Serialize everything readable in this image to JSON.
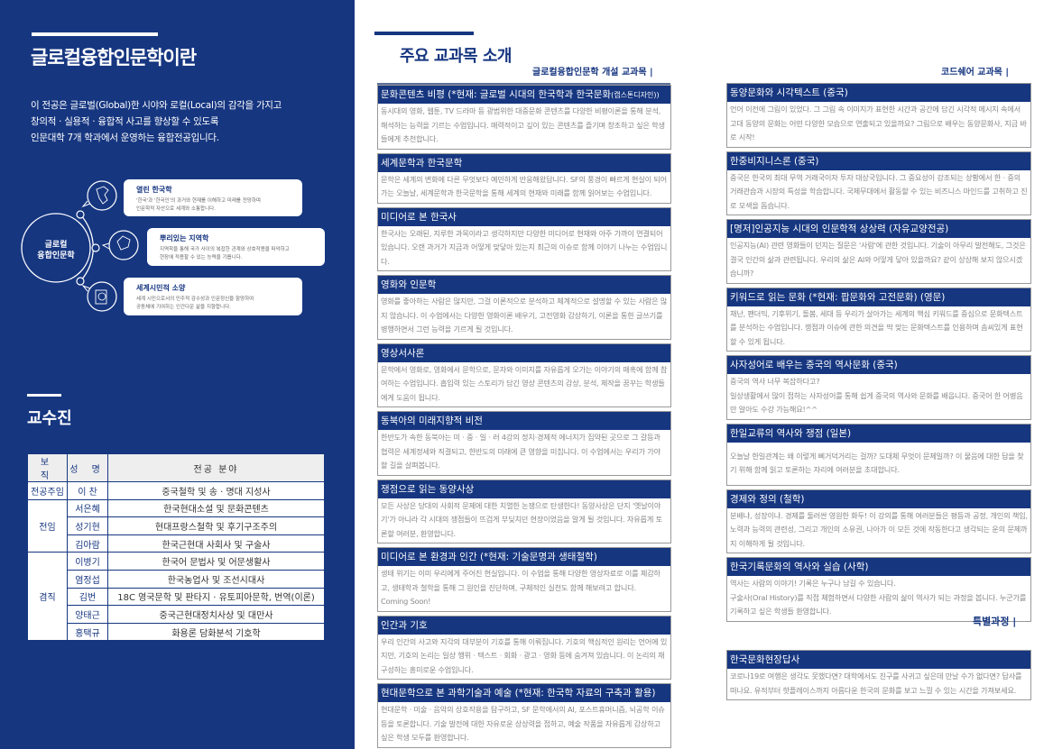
{
  "left": {
    "title": "글로컬융합인문학이란",
    "intro": [
      "이 전공은 글로벌(Global)한 시야와 로컬(Local)의 감각을 가지고",
      "창의적 · 실용적 · 융합적 사고를 향상할 수 있도록",
      "인문대학 7개 학과에서 운영하는 융합전공입니다."
    ],
    "diagram": {
      "center_line1": "글로컬",
      "center_line2": "융합인문학",
      "cards": [
        {
          "title": "열린 한국학",
          "line1": "'한국'과 '한국인'의 과거와 현재를 이해하고 미래를 전망하며",
          "line2": "인문학적 자산으로 세계와 소통합니다.",
          "icon": "korea-map-icon"
        },
        {
          "title": "뿌리있는 지역학",
          "line1": "지역학을 통해 국가 사이의 복잡한 관계와 상호작용을 파악하고",
          "line2": "현장에 적용할 수 있는 능력을 기릅니다.",
          "icon": "region-map-icon"
        },
        {
          "title": "세계시민적 소양",
          "line1": "세계 시민으로서의 민주적 감수성과 인문정신을 함양하여",
          "line2": "공동체에 기여하는 인간다운 삶을 지향합니다.",
          "icon": "passport-globe-icon"
        }
      ]
    },
    "faculty_title": "교수진",
    "table": {
      "headers": [
        "보 직",
        "성 명",
        "전공 분야"
      ],
      "rows": [
        {
          "rank": "전공주임",
          "name": "이 찬",
          "field": "중국철학 및 송 · 명대 지성사"
        },
        {
          "rank": "전임",
          "name": "서은혜",
          "field": "한국현대소설 및 문화콘텐츠"
        },
        {
          "rank": "",
          "name": "성기현",
          "field": "현대프랑스철학 및 후기구조주의"
        },
        {
          "rank": "",
          "name": "김아람",
          "field": "한국근현대 사회사 및 구술사"
        },
        {
          "rank": "겸직",
          "name": "이병기",
          "field": "한국어 문법사 및 어문생활사"
        },
        {
          "rank": "",
          "name": "염정섭",
          "field": "한국농업사 및 조선시대사"
        },
        {
          "rank": "",
          "name": "김번",
          "field": "18C 영국문학 및 판타지 · 유토피아문학, 번역(이론)"
        },
        {
          "rank": "",
          "name": "양태근",
          "field": "중국근현대정치사상 및 대만사"
        },
        {
          "rank": "",
          "name": "홍택규",
          "field": "화용론 담화분석 기호학"
        }
      ]
    }
  },
  "right": {
    "title": "주요 교과목 소개",
    "sub_left": "글로컬융합인문학 개설 교과목  |",
    "sub_right": "코드쉐어 교과목  |",
    "sub_special": "특별과정  |",
    "left_courses": [
      {
        "title": "문화콘텐츠 비평 (*현재: 글로벌 시대의 한국학과 한국문화",
        "title_small": "(캡스톤디자인))",
        "desc": "동시대의 영화, 웹툰, TV 드라마 등 광범위한 대중문화 콘텐츠를 다양한 비평이론을 통해 분석, 해석하는 능력을 기르는 수업입니다. 매력적이고 깊이 있는 콘텐츠를 즐기며 창조하고 싶은 학생들에게 추천합니다."
      },
      {
        "title": "세계문학과 한국문학",
        "desc": "문학은 세계의 변화에 다른 무엇보다 예민하게 반응해왔답니다. SF의 풍경이 빠르게 현실이 되어가는 오늘날, 세계문학과 한국문학을 통해 세계의 현재와 미래를 함께 읽어보는 수업입니다."
      },
      {
        "title": "미디어로 본 한국사",
        "desc": "한국사는 오래된, 지루한 과목이라고 생각하지만 다양한 미디어로 현재와 아주 가까이 연결되어 있습니다. 오랜 과거가 지금과 어떻게 맞닿아 있는지 최근의 이슈로 함께 이야기 나누는 수업입니다."
      },
      {
        "title": "영화와 인문학",
        "desc": "영화를 좋아하는 사람은 많지만, 그걸 이론적으로 분석하고 체계적으로 설명할 수 있는 사람은 많지 않습니다. 이 수업에서는 다양한 영화이론 배우기, 고전영화 감상하기, 이론을 통한 글쓰기를 병행하면서 그런 능력을 기르게 될 것입니다."
      },
      {
        "title": "영상서사론",
        "desc": "문학에서 영화로, 영화에서 문학으로, 문자와 이미지를 자유롭게 오가는 이야기의 매혹에 함께 참여하는 수업입니다. 흡입력 있는 스토리가 담긴 영상 콘텐츠의 감상, 분석, 제작을 꿈꾸는 학생들에게 도움이 됩니다."
      },
      {
        "title": "동북아의 미래지향적 비전",
        "desc": "한반도가 속한 동북아는 미 · 중 · 일 · 러 4강의 정치·경제적 에너지가 집약된 곳으로 그 갈등과 협력은 세계정세와 직결되고, 한반도의 미래에 큰 영향을 미칩니다. 이 수업에서는 우리가 가야 할 길을 살펴봅니다."
      },
      {
        "title": "쟁점으로 읽는 동양사상",
        "desc": "모든 사상은 당대의 사회적 문제에 대한 치열한 논쟁으로 탄생한다! 동양사상은 단지 '옛날이야기'가 아니라 각 시대의 쟁점들이 뜨겁게 부딪치던 현장이었음을 알게 될 것입니다. 자유롭게 토론할 여러분, 환영합니다."
      },
      {
        "title": "미디어로 본 환경과 인간 (*현재: 기술문명과 생태철학)",
        "desc": "생태 위기는 이미 우리에게 주어진 현실입니다. 이 수업을 통해 다양한 영상자료로 이를 체감하고, 생태학과 철학을 통해 그 원인을 진단하며, 구체적인 실천도 함께 해보려고 합니다.\nComing Soon!"
      },
      {
        "title": "인간과 기호",
        "desc": "우리 인간의 사고와 지각의 대부분이 기호를 통해 이뤄집니다. 기호의 핵심적인 원리는 언어에 있지만, 기호의 논리는 일상 행위 · 텍스트 · 회화 · 광고 · 영화 등에 숨겨져 있습니다. 이 논리의 재구성하는 흥미로운 수업입니다."
      },
      {
        "title": "현대문학으로 본 과학기술과 예술 (*현재: 한국학 자료의 구축과 활용)",
        "desc": "현대문학 · 미술 · 음악의 상호작용을 탐구하고, SF 문학에서의 AI, 포스트휴머니즘, 뇌공학 이슈 등을 토론합니다. 기술 발전에 대한 자유로운 상상력을 접하고, 예술 작품을 자유롭게 감상하고 싶은 학생 모두를 환영합니다."
      }
    ],
    "right_courses": [
      {
        "title": "동양문화와 시각텍스트 (중국)",
        "desc": "언어 이전에 그림이 있었다. 그 그림 속 이미지가 표현한 시간과 공간에 담긴 시각적 메시지 속에서 고대 동양의 문화는 어떤 다양한 모습으로 연출되고 있을까요? 그림으로 배우는 동양문화사, 지금 바로 시작!"
      },
      {
        "title": "한중비지니스론 (중국)",
        "desc": "중국은 한국의 최대 무역 거래국이자 투자 대상국입니다. 그 중요성이 강조되는 상황에서 한 · 중의 거래관습과 시장의 특성을 학습합니다. 국제무대에서 활동할 수 있는 비즈니스 마인드를 고취하고 진로 모색을 돕습니다."
      },
      {
        "title": "[명저]인공지능 시대의 인문학적 상상력 (자유교양전공)",
        "desc": "인공지능(AI) 관련 영화들이 던지는 질문은 '사람'에 관한 것입니다. 기술이 아무리 발전해도, 그것은 결국 인간의 삶과 관련됩니다. 우리의 삶은 AI와 어떻게 닿아 있을까요? 같이 상상해 보지 않으시겠습니까?"
      },
      {
        "title": "키워드로 읽는 문화 (*현재: 팝문화와 고전문화) (영문)",
        "desc": "재난, 팬더믹, 기후위기, 돌봄, 세대 등 우리가 살아가는 세계의 핵심 키워드를 중심으로 문화텍스트를 분석하는 수업입니다. 쟁점과 이슈에 관한 의견을 딱 맞는 문화텍스트를 인용하며 솜씨있게 표현할 수 있게 됩니다."
      },
      {
        "title": "사자성어로 배우는 중국의 역사문화 (중국)",
        "desc": "중국의 역사 너무 복잡하다고?\n일상생활에서 많이 접하는 사자성어를 통해 쉽게 중국의 역사와 문화를 배웁니다. 중국어 한 어병음만 알아도 수강 가능해요!^^"
      },
      {
        "title": "한일교류의 역사와 쟁점 (일본)",
        "desc": "오늘날 한일관계는 왜 이렇게 삐거덕거리는 걸까? 도대체 무엇이 문제일까? 이 물음에 대한 답을 찾기 위해 함께 읽고 토론하는 자리에 여러분을 초대합니다."
      },
      {
        "title": "경제와 정의 (철학)",
        "desc": "분배냐, 성장이냐. 경제를 둘러싼 영원한 화두! 이 강의를 통해 여러분들은 평등과 공정, 개인의 책임, 노력과 능력의 관련성, 그리고 개인의 소유권, 나아가 이 모든 것에 작동한다고 생각되는 운의 문제까지 이해하게 될 것입니다."
      },
      {
        "title": "한국기록문화의 역사와 실습 (사학)",
        "desc": "역사는 사람의 이야기! 기록은 누구나 남길 수 있습니다.\n구술사(Oral History)를 직접 체험하면서 다양한 사람의 삶이 역사가 되는 과정을 봅니다. 누군가를 기록하고 싶은 학생들 환영합니다."
      }
    ],
    "special_courses": [
      {
        "title": "한국문화현장답사",
        "desc": "코로나19로 여행은 생각도 못했다면? 대학에서도 친구를 사귀고 싶은데 만날 수가 없다면? 답사를 떠나요. 유적부터 핫플레이스까지 아름다운 한국의 문화를 보고 느낄 수 있는 시간을 가져보세요."
      }
    ]
  },
  "colors": {
    "navy": "#163680",
    "border": "#999999",
    "body_text": "#888888"
  }
}
